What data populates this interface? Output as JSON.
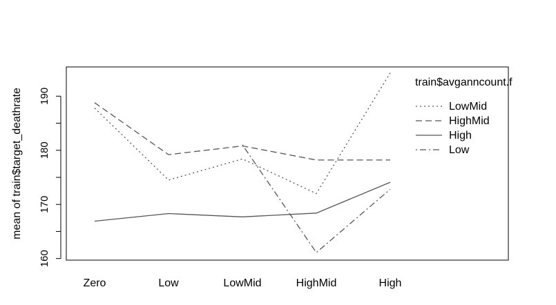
{
  "chart_data": {
    "type": "line",
    "title": "",
    "xlabel": "",
    "ylabel": "mean of  train$target_deathrate",
    "categories": [
      "Zero",
      "Low",
      "LowMid",
      "HighMid",
      "High"
    ],
    "ylim": [
      159.7,
      195.4
    ],
    "yticks": [
      160,
      170,
      180,
      190
    ],
    "grid": false,
    "legend": {
      "title": "train$avganncount.f",
      "placement": "top-right inside plot"
    },
    "series": [
      {
        "name": "LowMid",
        "line_style": "dotted",
        "values": [
          187.8,
          174.5,
          178.4,
          172.0,
          194.3
        ]
      },
      {
        "name": "HighMid",
        "line_style": "dashed",
        "values": [
          188.8,
          179.2,
          180.8,
          178.2,
          178.2
        ]
      },
      {
        "name": "High",
        "line_style": "solid",
        "values": [
          166.9,
          168.3,
          167.7,
          168.4,
          174.1
        ]
      },
      {
        "name": "Low",
        "line_style": "dotdash",
        "values": [
          null,
          null,
          181.0,
          161.1,
          172.8
        ]
      }
    ],
    "line_color": "#555555"
  }
}
